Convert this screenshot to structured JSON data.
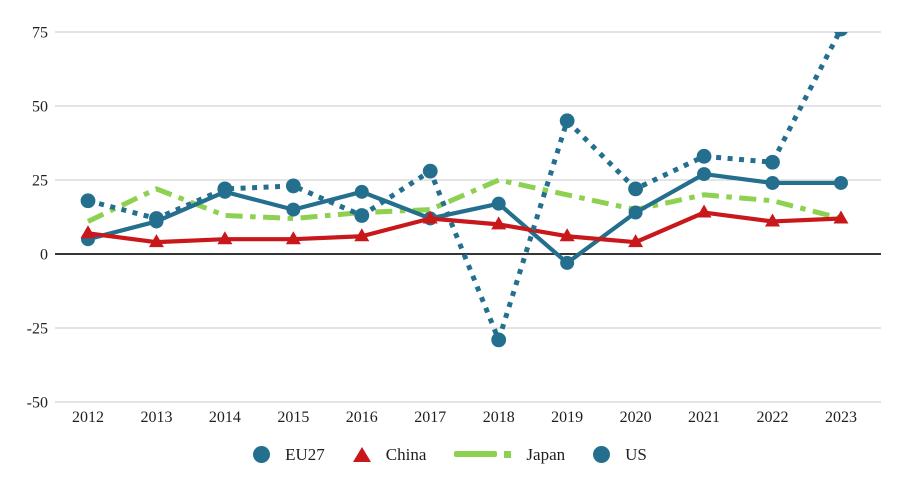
{
  "chart_data": {
    "type": "line",
    "title": "",
    "xlabel": "",
    "ylabel": "",
    "x": [
      2012,
      2013,
      2014,
      2015,
      2016,
      2017,
      2018,
      2019,
      2020,
      2021,
      2022,
      2023
    ],
    "x_labels": [
      "2012",
      "2013",
      "2014",
      "2015",
      "2016",
      "2017",
      "2018",
      "2019",
      "2020",
      "2021",
      "2022",
      "2023"
    ],
    "ylim": [
      -50,
      75
    ],
    "yticks": [
      75,
      50,
      25,
      0,
      -25,
      -50
    ],
    "ytick_labels": [
      "75",
      "50",
      "25",
      "0",
      "-25",
      "-50"
    ],
    "grid": "horizontal gridlines only, zero line emphasized in black",
    "legend_position": "bottom center",
    "series": [
      {
        "name": "EU27",
        "color": "#256f8e",
        "line_style": "solid",
        "marker": "circle",
        "values": [
          5,
          11,
          21,
          15,
          21,
          12,
          17,
          -3,
          14,
          27,
          24,
          24
        ]
      },
      {
        "name": "China",
        "color": "#c9181c",
        "line_style": "solid",
        "marker": "triangle",
        "values": [
          7,
          4,
          5,
          5,
          6,
          12,
          10,
          6,
          4,
          14,
          11,
          12
        ]
      },
      {
        "name": "Japan",
        "color": "#8ed04f",
        "line_style": "dashdot",
        "marker": "none",
        "values": [
          11,
          22,
          13,
          12,
          14,
          15,
          25,
          20,
          15,
          20,
          18,
          12
        ]
      },
      {
        "name": "US",
        "color": "#256f8e",
        "line_style": "dotted",
        "marker": "circle",
        "values": [
          18,
          12,
          22,
          23,
          13,
          28,
          -29,
          45,
          22,
          33,
          31,
          76
        ]
      }
    ],
    "draw_order": [
      "Japan",
      "EU27",
      "China",
      "US"
    ],
    "legend": [
      {
        "label": "EU27",
        "swatch": "circle",
        "color": "#256f8e"
      },
      {
        "label": "China",
        "swatch": "triangle",
        "color": "#c9181c"
      },
      {
        "label": "Japan",
        "swatch": "dash",
        "color": "#8ed04f"
      },
      {
        "label": "US",
        "swatch": "circle",
        "color": "#256f8e"
      }
    ]
  },
  "colors": {
    "background": "#ffffff",
    "gridline": "#c9c9c9",
    "zero_line": "#1a1a1a",
    "tick_text": "#1f1f1f",
    "teal": "#256f8e",
    "red": "#c9181c",
    "green": "#8ed04f"
  }
}
